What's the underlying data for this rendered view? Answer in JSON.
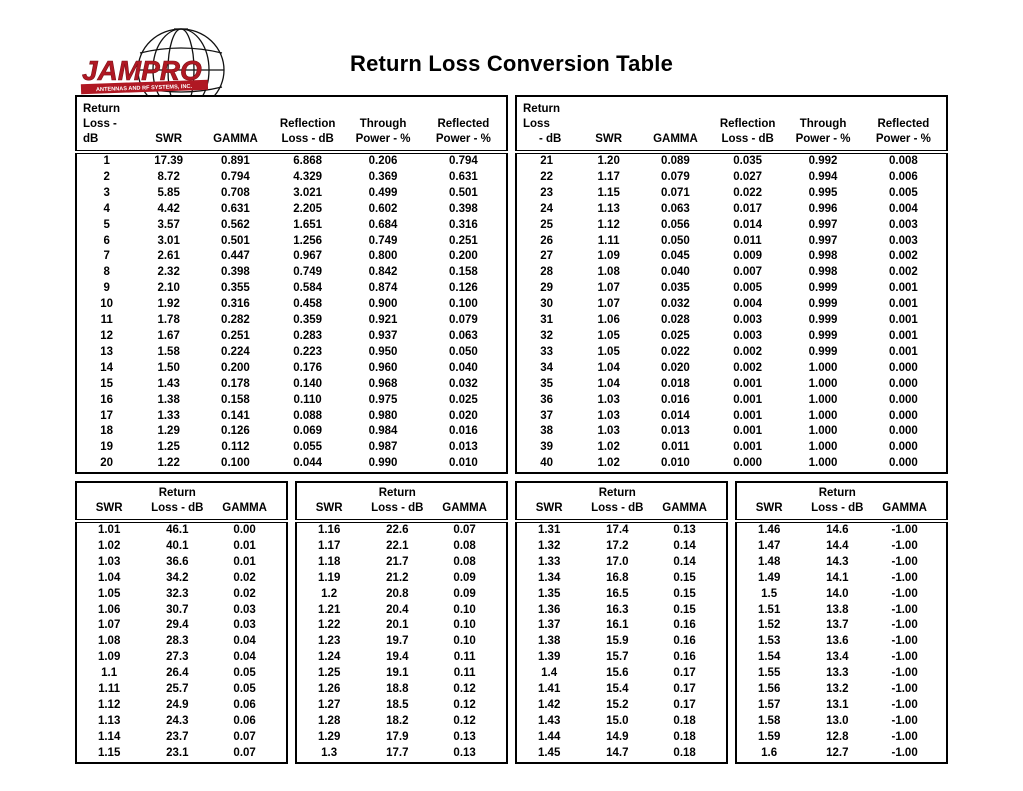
{
  "page": {
    "title": "Return Loss Conversion Table"
  },
  "logo": {
    "brand": "JAMPRO",
    "tagline": "ANTENNAS AND RF SYSTEMS, INC.",
    "brand_color": "#b01823"
  },
  "top_table": {
    "left": {
      "header_line1": [
        "Return",
        "",
        "",
        "Reflection",
        "Through",
        "Reflected"
      ],
      "header_line2": [
        "Loss - dB",
        "SWR",
        "GAMMA",
        "Loss - dB",
        "Power - %",
        "Power - %"
      ],
      "rows": [
        [
          "1",
          "17.39",
          "0.891",
          "6.868",
          "0.206",
          "0.794"
        ],
        [
          "2",
          "8.72",
          "0.794",
          "4.329",
          "0.369",
          "0.631"
        ],
        [
          "3",
          "5.85",
          "0.708",
          "3.021",
          "0.499",
          "0.501"
        ],
        [
          "4",
          "4.42",
          "0.631",
          "2.205",
          "0.602",
          "0.398"
        ],
        [
          "5",
          "3.57",
          "0.562",
          "1.651",
          "0.684",
          "0.316"
        ],
        [
          "6",
          "3.01",
          "0.501",
          "1.256",
          "0.749",
          "0.251"
        ],
        [
          "7",
          "2.61",
          "0.447",
          "0.967",
          "0.800",
          "0.200"
        ],
        [
          "8",
          "2.32",
          "0.398",
          "0.749",
          "0.842",
          "0.158"
        ],
        [
          "9",
          "2.10",
          "0.355",
          "0.584",
          "0.874",
          "0.126"
        ],
        [
          "10",
          "1.92",
          "0.316",
          "0.458",
          "0.900",
          "0.100"
        ],
        [
          "11",
          "1.78",
          "0.282",
          "0.359",
          "0.921",
          "0.079"
        ],
        [
          "12",
          "1.67",
          "0.251",
          "0.283",
          "0.937",
          "0.063"
        ],
        [
          "13",
          "1.58",
          "0.224",
          "0.223",
          "0.950",
          "0.050"
        ],
        [
          "14",
          "1.50",
          "0.200",
          "0.176",
          "0.960",
          "0.040"
        ],
        [
          "15",
          "1.43",
          "0.178",
          "0.140",
          "0.968",
          "0.032"
        ],
        [
          "16",
          "1.38",
          "0.158",
          "0.110",
          "0.975",
          "0.025"
        ],
        [
          "17",
          "1.33",
          "0.141",
          "0.088",
          "0.980",
          "0.020"
        ],
        [
          "18",
          "1.29",
          "0.126",
          "0.069",
          "0.984",
          "0.016"
        ],
        [
          "19",
          "1.25",
          "0.112",
          "0.055",
          "0.987",
          "0.013"
        ],
        [
          "20",
          "1.22",
          "0.100",
          "0.044",
          "0.990",
          "0.010"
        ]
      ]
    },
    "right": {
      "header_line1": [
        "Return Loss",
        "",
        "",
        "Reflection",
        "Through",
        "Reflected"
      ],
      "header_line2": [
        "- dB",
        "SWR",
        "GAMMA",
        "Loss - dB",
        "Power - %",
        "Power - %"
      ],
      "rows": [
        [
          "21",
          "1.20",
          "0.089",
          "0.035",
          "0.992",
          "0.008"
        ],
        [
          "22",
          "1.17",
          "0.079",
          "0.027",
          "0.994",
          "0.006"
        ],
        [
          "23",
          "1.15",
          "0.071",
          "0.022",
          "0.995",
          "0.005"
        ],
        [
          "24",
          "1.13",
          "0.063",
          "0.017",
          "0.996",
          "0.004"
        ],
        [
          "25",
          "1.12",
          "0.056",
          "0.014",
          "0.997",
          "0.003"
        ],
        [
          "26",
          "1.11",
          "0.050",
          "0.011",
          "0.997",
          "0.003"
        ],
        [
          "27",
          "1.09",
          "0.045",
          "0.009",
          "0.998",
          "0.002"
        ],
        [
          "28",
          "1.08",
          "0.040",
          "0.007",
          "0.998",
          "0.002"
        ],
        [
          "29",
          "1.07",
          "0.035",
          "0.005",
          "0.999",
          "0.001"
        ],
        [
          "30",
          "1.07",
          "0.032",
          "0.004",
          "0.999",
          "0.001"
        ],
        [
          "31",
          "1.06",
          "0.028",
          "0.003",
          "0.999",
          "0.001"
        ],
        [
          "32",
          "1.05",
          "0.025",
          "0.003",
          "0.999",
          "0.001"
        ],
        [
          "33",
          "1.05",
          "0.022",
          "0.002",
          "0.999",
          "0.001"
        ],
        [
          "34",
          "1.04",
          "0.020",
          "0.002",
          "1.000",
          "0.000"
        ],
        [
          "35",
          "1.04",
          "0.018",
          "0.001",
          "1.000",
          "0.000"
        ],
        [
          "36",
          "1.03",
          "0.016",
          "0.001",
          "1.000",
          "0.000"
        ],
        [
          "37",
          "1.03",
          "0.014",
          "0.001",
          "1.000",
          "0.000"
        ],
        [
          "38",
          "1.03",
          "0.013",
          "0.001",
          "1.000",
          "0.000"
        ],
        [
          "39",
          "1.02",
          "0.011",
          "0.001",
          "1.000",
          "0.000"
        ],
        [
          "40",
          "1.02",
          "0.010",
          "0.000",
          "1.000",
          "0.000"
        ]
      ]
    }
  },
  "bottom_table": {
    "header_top": "Return",
    "header_cols": [
      "SWR",
      "Loss - dB",
      "GAMMA"
    ],
    "groups": [
      {
        "rows": [
          [
            "1.01",
            "46.1",
            "0.00"
          ],
          [
            "1.02",
            "40.1",
            "0.01"
          ],
          [
            "1.03",
            "36.6",
            "0.01"
          ],
          [
            "1.04",
            "34.2",
            "0.02"
          ],
          [
            "1.05",
            "32.3",
            "0.02"
          ],
          [
            "1.06",
            "30.7",
            "0.03"
          ],
          [
            "1.07",
            "29.4",
            "0.03"
          ],
          [
            "1.08",
            "28.3",
            "0.04"
          ],
          [
            "1.09",
            "27.3",
            "0.04"
          ],
          [
            "1.1",
            "26.4",
            "0.05"
          ],
          [
            "1.11",
            "25.7",
            "0.05"
          ],
          [
            "1.12",
            "24.9",
            "0.06"
          ],
          [
            "1.13",
            "24.3",
            "0.06"
          ],
          [
            "1.14",
            "23.7",
            "0.07"
          ],
          [
            "1.15",
            "23.1",
            "0.07"
          ]
        ]
      },
      {
        "rows": [
          [
            "1.16",
            "22.6",
            "0.07"
          ],
          [
            "1.17",
            "22.1",
            "0.08"
          ],
          [
            "1.18",
            "21.7",
            "0.08"
          ],
          [
            "1.19",
            "21.2",
            "0.09"
          ],
          [
            "1.2",
            "20.8",
            "0.09"
          ],
          [
            "1.21",
            "20.4",
            "0.10"
          ],
          [
            "1.22",
            "20.1",
            "0.10"
          ],
          [
            "1.23",
            "19.7",
            "0.10"
          ],
          [
            "1.24",
            "19.4",
            "0.11"
          ],
          [
            "1.25",
            "19.1",
            "0.11"
          ],
          [
            "1.26",
            "18.8",
            "0.12"
          ],
          [
            "1.27",
            "18.5",
            "0.12"
          ],
          [
            "1.28",
            "18.2",
            "0.12"
          ],
          [
            "1.29",
            "17.9",
            "0.13"
          ],
          [
            "1.3",
            "17.7",
            "0.13"
          ]
        ]
      },
      {
        "rows": [
          [
            "1.31",
            "17.4",
            "0.13"
          ],
          [
            "1.32",
            "17.2",
            "0.14"
          ],
          [
            "1.33",
            "17.0",
            "0.14"
          ],
          [
            "1.34",
            "16.8",
            "0.15"
          ],
          [
            "1.35",
            "16.5",
            "0.15"
          ],
          [
            "1.36",
            "16.3",
            "0.15"
          ],
          [
            "1.37",
            "16.1",
            "0.16"
          ],
          [
            "1.38",
            "15.9",
            "0.16"
          ],
          [
            "1.39",
            "15.7",
            "0.16"
          ],
          [
            "1.4",
            "15.6",
            "0.17"
          ],
          [
            "1.41",
            "15.4",
            "0.17"
          ],
          [
            "1.42",
            "15.2",
            "0.17"
          ],
          [
            "1.43",
            "15.0",
            "0.18"
          ],
          [
            "1.44",
            "14.9",
            "0.18"
          ],
          [
            "1.45",
            "14.7",
            "0.18"
          ]
        ]
      },
      {
        "rows": [
          [
            "1.46",
            "14.6",
            "-1.00"
          ],
          [
            "1.47",
            "14.4",
            "-1.00"
          ],
          [
            "1.48",
            "14.3",
            "-1.00"
          ],
          [
            "1.49",
            "14.1",
            "-1.00"
          ],
          [
            "1.5",
            "14.0",
            "-1.00"
          ],
          [
            "1.51",
            "13.8",
            "-1.00"
          ],
          [
            "1.52",
            "13.7",
            "-1.00"
          ],
          [
            "1.53",
            "13.6",
            "-1.00"
          ],
          [
            "1.54",
            "13.4",
            "-1.00"
          ],
          [
            "1.55",
            "13.3",
            "-1.00"
          ],
          [
            "1.56",
            "13.2",
            "-1.00"
          ],
          [
            "1.57",
            "13.1",
            "-1.00"
          ],
          [
            "1.58",
            "13.0",
            "-1.00"
          ],
          [
            "1.59",
            "12.8",
            "-1.00"
          ],
          [
            "1.6",
            "12.7",
            "-1.00"
          ]
        ]
      }
    ]
  }
}
